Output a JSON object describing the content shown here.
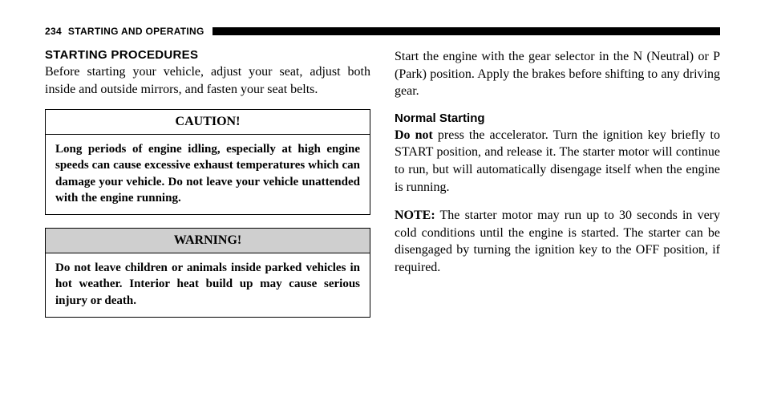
{
  "header": {
    "page_number": "234",
    "section": "STARTING AND OPERATING"
  },
  "left": {
    "heading": "STARTING PROCEDURES",
    "intro": "Before starting your vehicle, adjust your seat, adjust both inside and outside mirrors, and fasten your seat belts.",
    "caution": {
      "title": "CAUTION!",
      "body": "Long periods of engine idling, especially at high engine speeds can cause excessive exhaust temperatures which can damage your vehicle. Do not leave your vehicle unattended with the engine running."
    },
    "warning": {
      "title": "WARNING!",
      "body": "Do not leave children or animals inside parked vehicles in hot weather. Interior heat build up may cause serious injury or death."
    }
  },
  "right": {
    "para1": "Start the engine with the gear selector in the N (Neutral) or P (Park) position. Apply the brakes before shifting to any driving gear.",
    "subheading": "Normal Starting",
    "para2_bold": "Do not",
    "para2_rest": " press the accelerator. Turn the ignition key briefly to START position, and release it. The starter motor will continue to run, but will automatically disengage itself when the engine is running.",
    "note_label": "NOTE:",
    "note_body": "  The starter motor may run up to 30 seconds in very cold conditions until the engine is started. The starter can be disengaged by turning the ignition key to the OFF position, if required."
  }
}
